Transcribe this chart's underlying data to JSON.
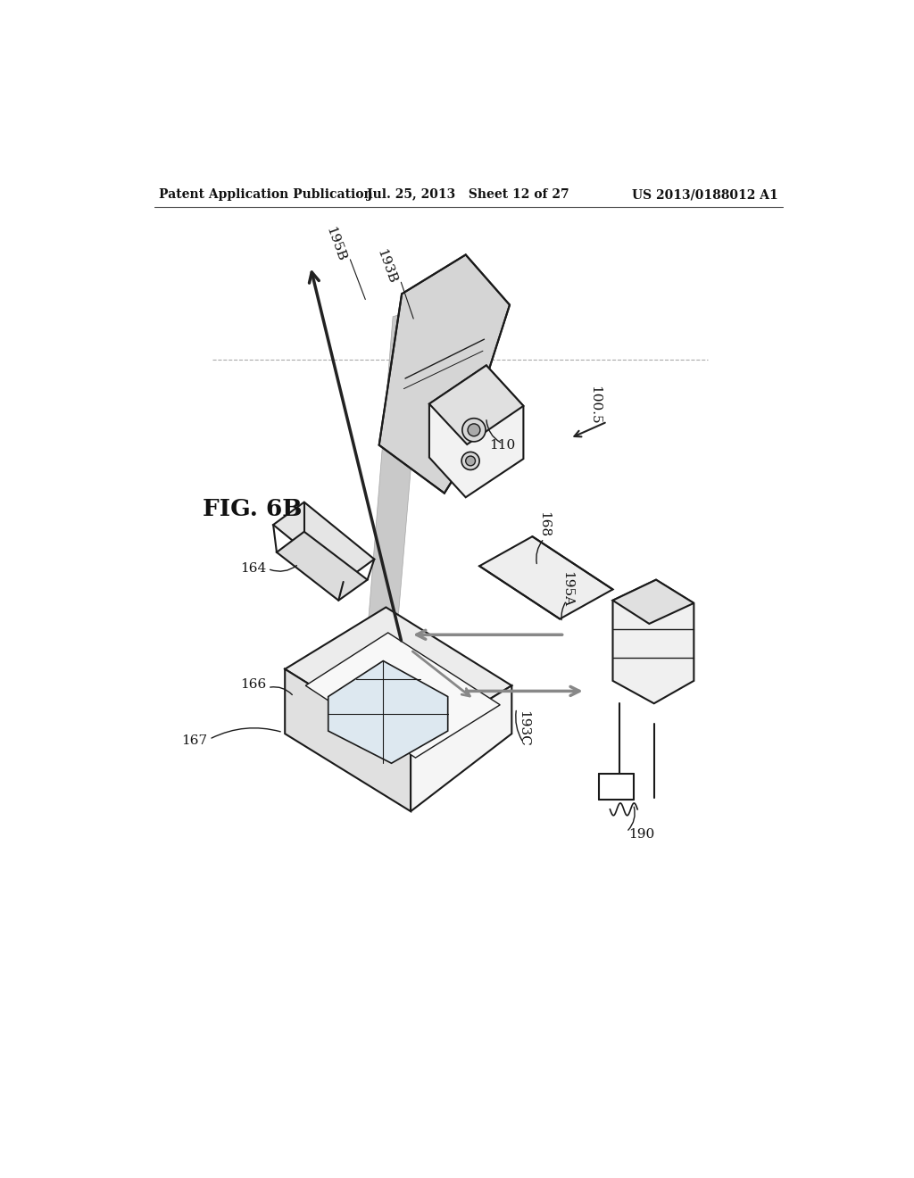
{
  "header_left": "Patent Application Publication",
  "header_mid": "Jul. 25, 2013   Sheet 12 of 27",
  "header_right": "US 2013/0188012 A1",
  "fig_label": "FIG. 6B",
  "background": "#ffffff",
  "line_color": "#1a1a1a",
  "gray_fill": "#c0c0c0",
  "light_fill": "#e8e8e8",
  "arrow_gray": "#888888"
}
